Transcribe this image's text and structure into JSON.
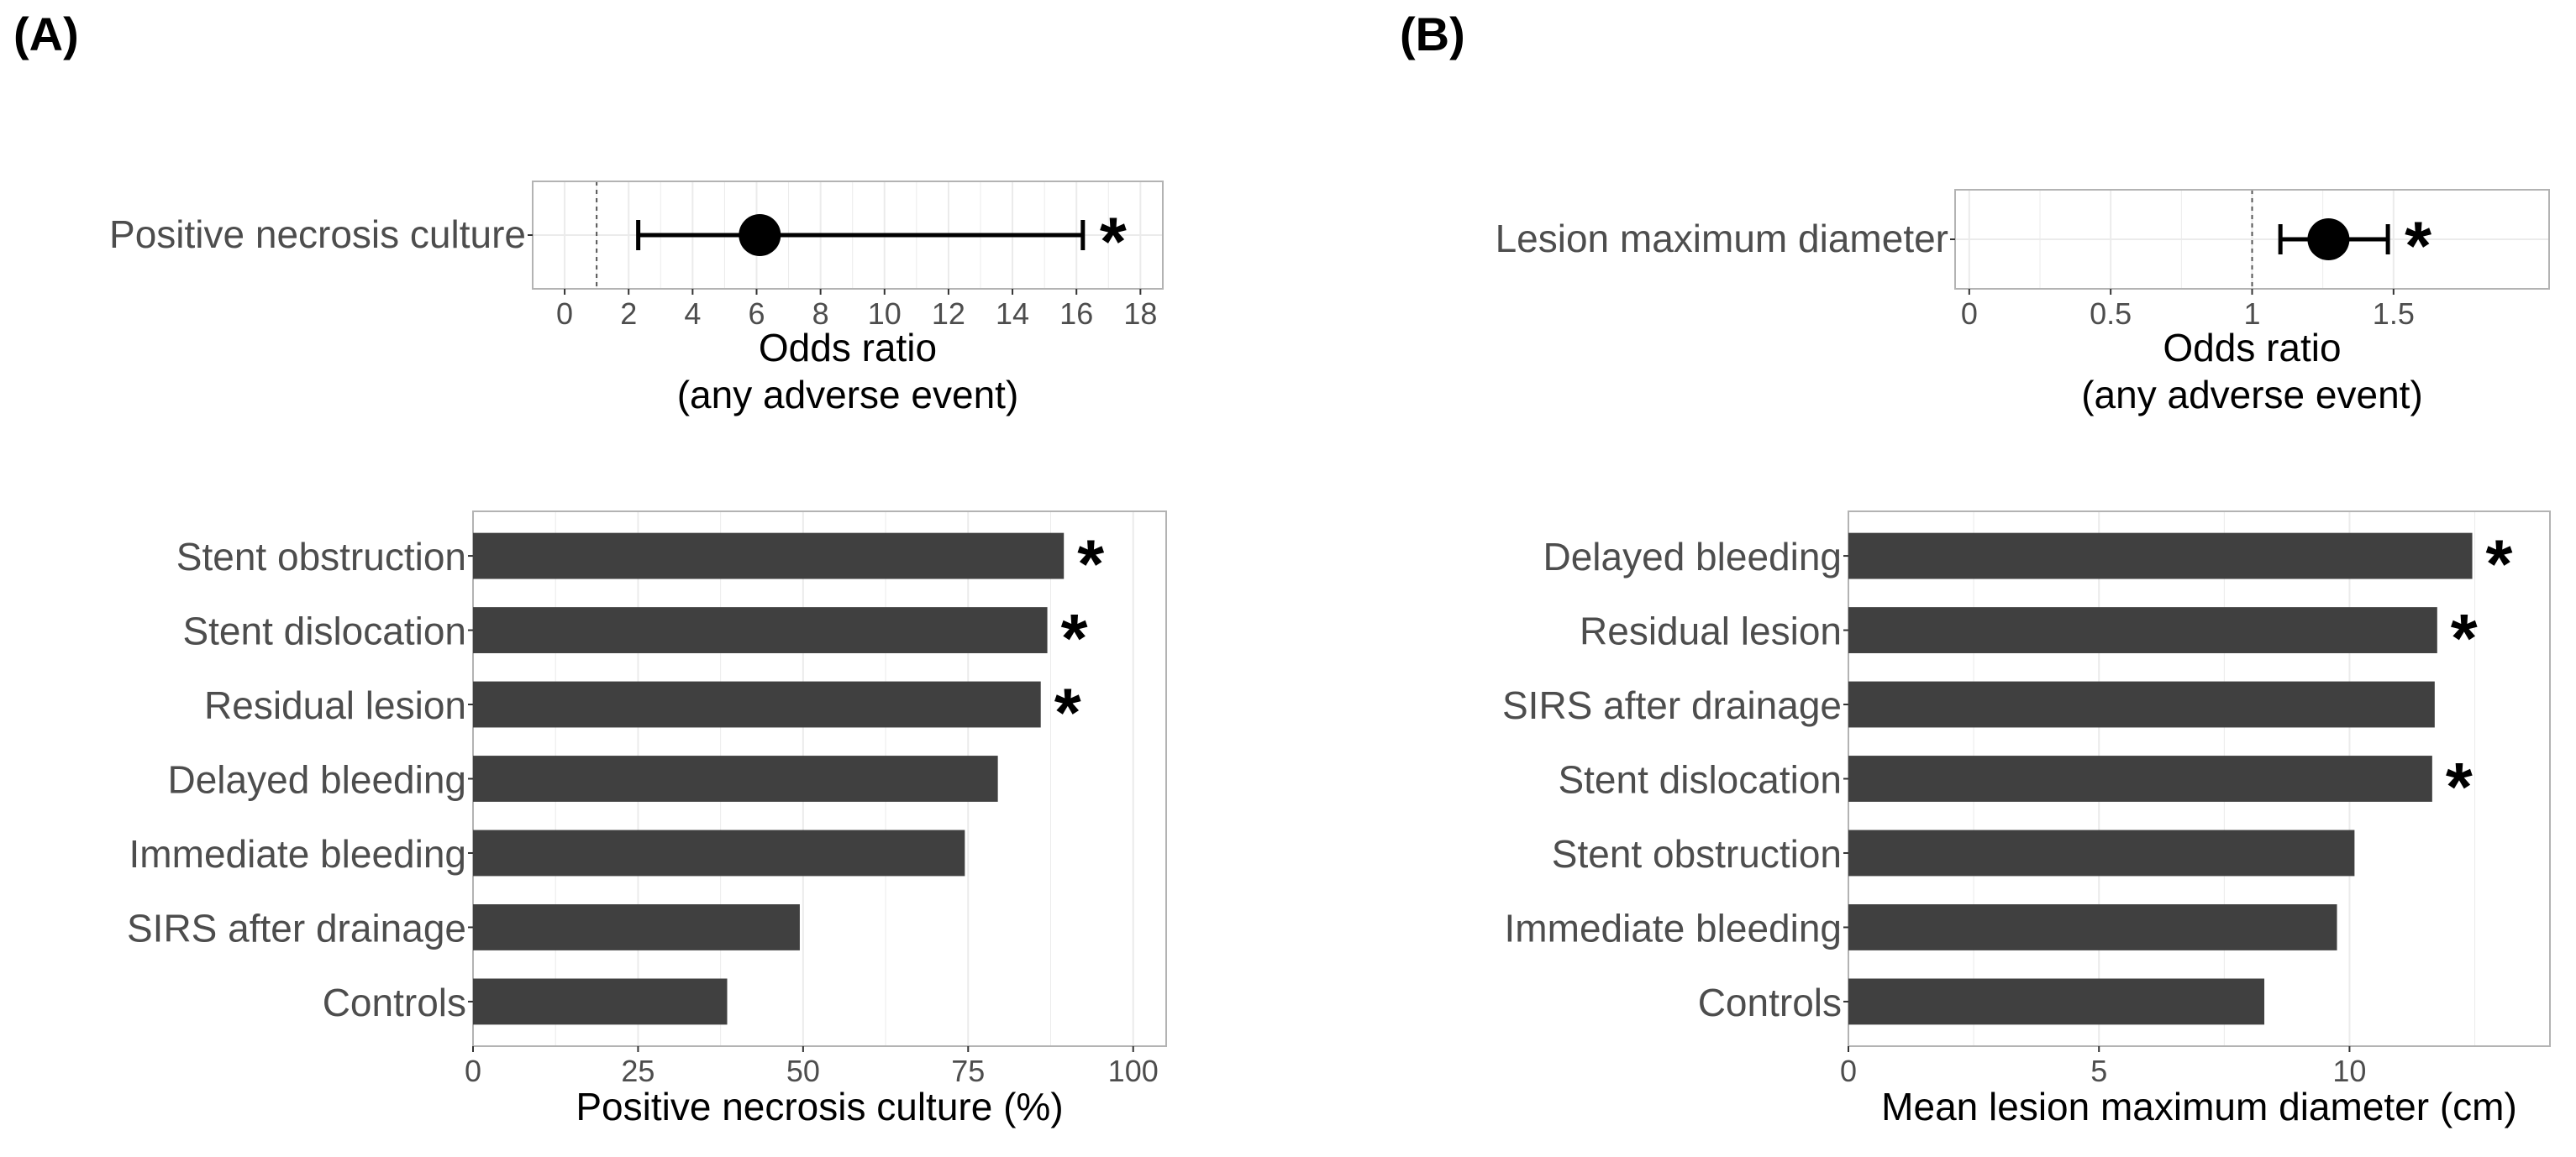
{
  "panel_labels": {
    "a": "(A)",
    "b": "(B)"
  },
  "colors": {
    "bar": "#404040",
    "frame": "#b3b3b3",
    "grid": "#ebebeb",
    "ref_line": "#555555",
    "text": "#4d4d4d",
    "mark": "#000000"
  },
  "chart_data": [
    {
      "id": "A_forest",
      "type": "scatter",
      "title": "",
      "variable": "Positive necrosis culture",
      "estimate": 6.1,
      "ci": [
        2.3,
        16.2
      ],
      "reference": 1,
      "significant": "*",
      "xlabel_line1": "Odds ratio",
      "xlabel_line2": "(any adverse event)",
      "xlim": [
        -1,
        18.7
      ],
      "ticks": [
        0,
        2,
        4,
        6,
        8,
        10,
        12,
        14,
        16,
        18
      ],
      "tick_labels": [
        "0",
        "2",
        "4",
        "6",
        "8",
        "10",
        "12",
        "14",
        "16",
        "18"
      ]
    },
    {
      "id": "A_bars",
      "type": "bar",
      "orientation": "horizontal",
      "categories": [
        "Stent obstruction",
        "Stent dislocation",
        "Residual lesion",
        "Delayed bleeding",
        "Immediate bleeding",
        "SIRS after drainage",
        "Controls"
      ],
      "values": [
        89.5,
        87,
        86,
        79.5,
        74.5,
        49.5,
        38.5
      ],
      "significant": [
        "*",
        "*",
        "*",
        "",
        "",
        "",
        ""
      ],
      "xlabel": "Positive necrosis culture (%)",
      "xlim": [
        0,
        105
      ],
      "ticks": [
        0,
        25,
        50,
        75,
        100
      ],
      "tick_labels": [
        "0",
        "25",
        "50",
        "75",
        "100"
      ]
    },
    {
      "id": "B_forest",
      "type": "scatter",
      "title": "",
      "variable": "Lesion maximum diameter",
      "estimate": 1.27,
      "ci": [
        1.1,
        1.48
      ],
      "reference": 1,
      "significant": "*",
      "xlabel_line1": "Odds ratio",
      "xlabel_line2": "(any adverse event)",
      "xlim": [
        -0.05,
        2.05
      ],
      "ticks": [
        0,
        0.5,
        1,
        1.5
      ],
      "tick_labels": [
        "0",
        "0.5",
        "1",
        "1.5"
      ]
    },
    {
      "id": "B_bars",
      "type": "bar",
      "orientation": "horizontal",
      "categories": [
        "Delayed bleeding",
        "Residual lesion",
        "SIRS after drainage",
        "Stent dislocation",
        "Stent obstruction",
        "Immediate bleeding",
        "Controls"
      ],
      "values": [
        12.45,
        11.75,
        11.7,
        11.65,
        10.1,
        9.75,
        8.3
      ],
      "significant": [
        "*",
        "*",
        "",
        "*",
        "",
        "",
        ""
      ],
      "xlabel": "Mean lesion maximum diameter (cm)",
      "xlim": [
        0,
        14
      ],
      "ticks": [
        0,
        5,
        10
      ],
      "tick_labels": [
        "0",
        "5",
        "10"
      ]
    }
  ]
}
